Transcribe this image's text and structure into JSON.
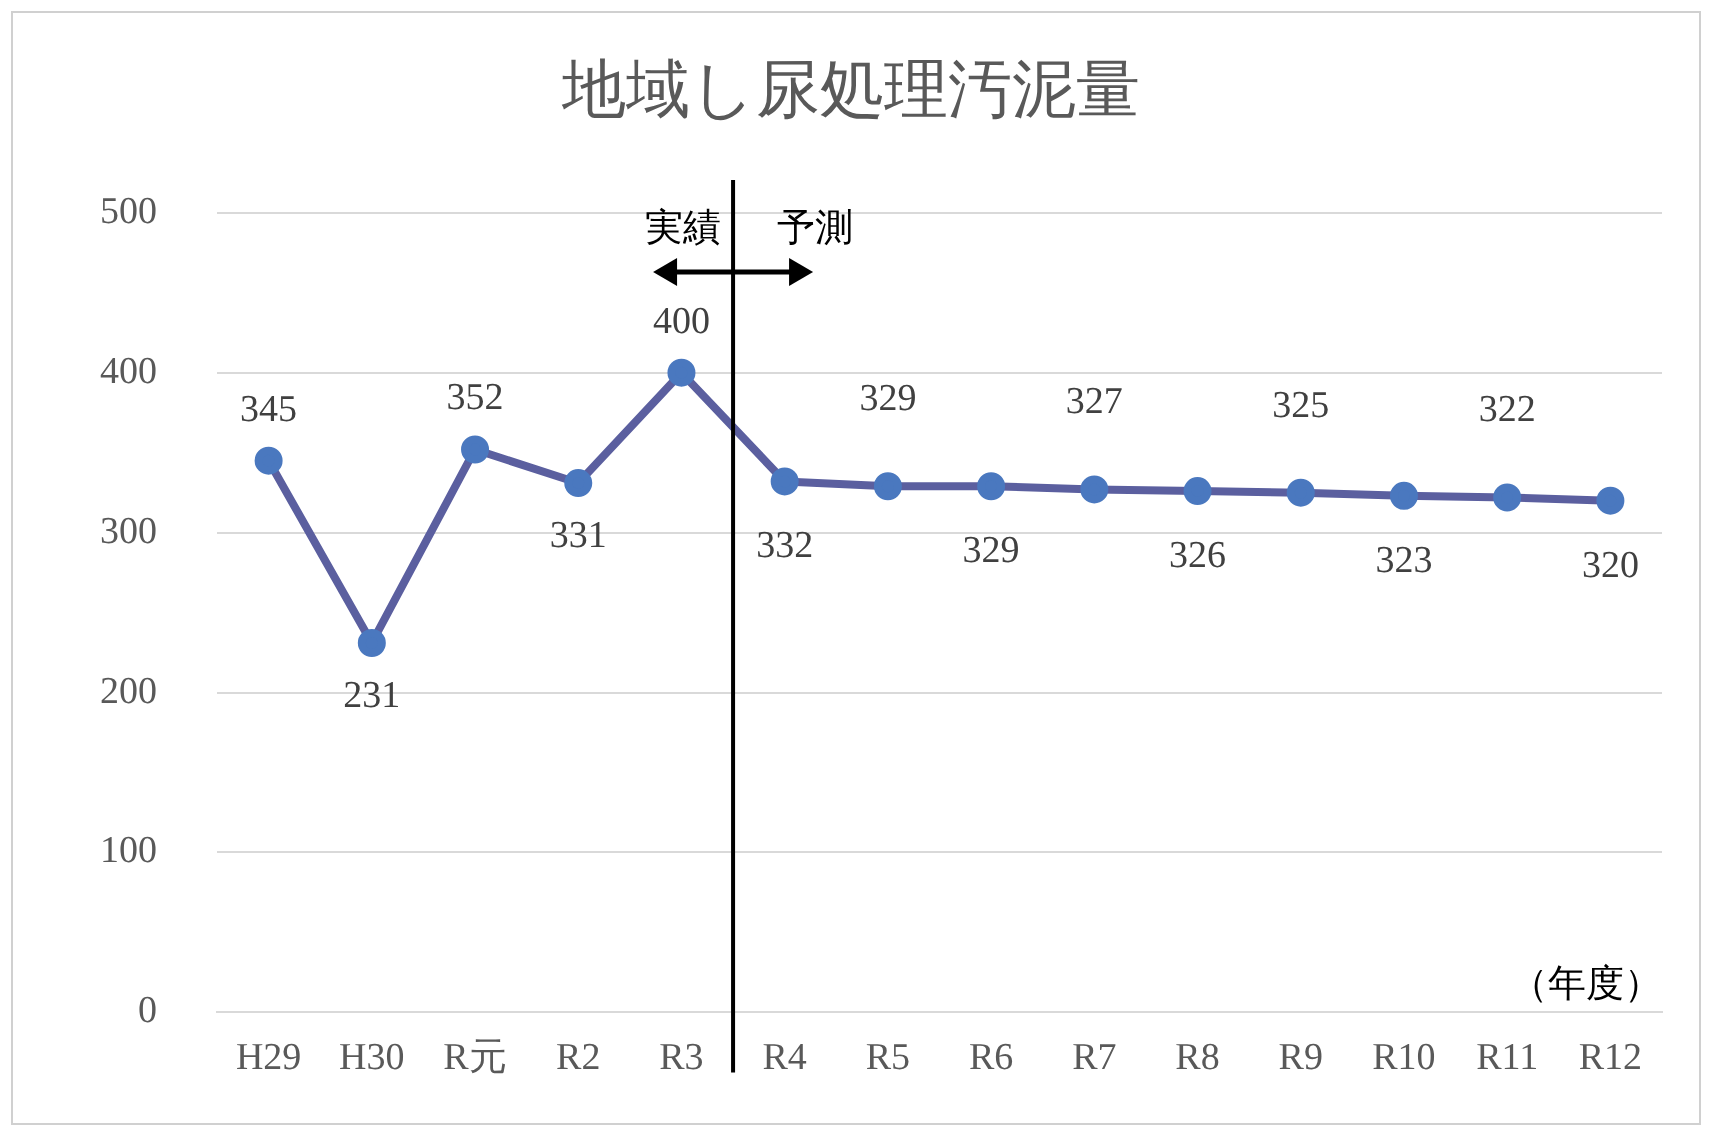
{
  "chart_data": {
    "type": "line",
    "title": "地域し尿処理汚泥量",
    "categories": [
      "H29",
      "H30",
      "R元",
      "R2",
      "R3",
      "R4",
      "R5",
      "R6",
      "R7",
      "R8",
      "R9",
      "R10",
      "R11",
      "R12"
    ],
    "series": [
      {
        "color": "#5b5f9f",
        "values": [
          345,
          231,
          352,
          331,
          400,
          332,
          329,
          329,
          327,
          326,
          325,
          323,
          322,
          320
        ]
      }
    ],
    "ylim": [
      0,
      500
    ],
    "yticks": [
      0,
      100,
      200,
      300,
      400,
      500
    ],
    "grid": "y",
    "legend": false,
    "marker": "circle",
    "data_labels": true,
    "ref_lines": [
      {
        "axis": "x",
        "value": "R3",
        "color": "#000000"
      }
    ],
    "annotations": [
      "実績",
      "予測",
      "（年度）"
    ]
  }
}
